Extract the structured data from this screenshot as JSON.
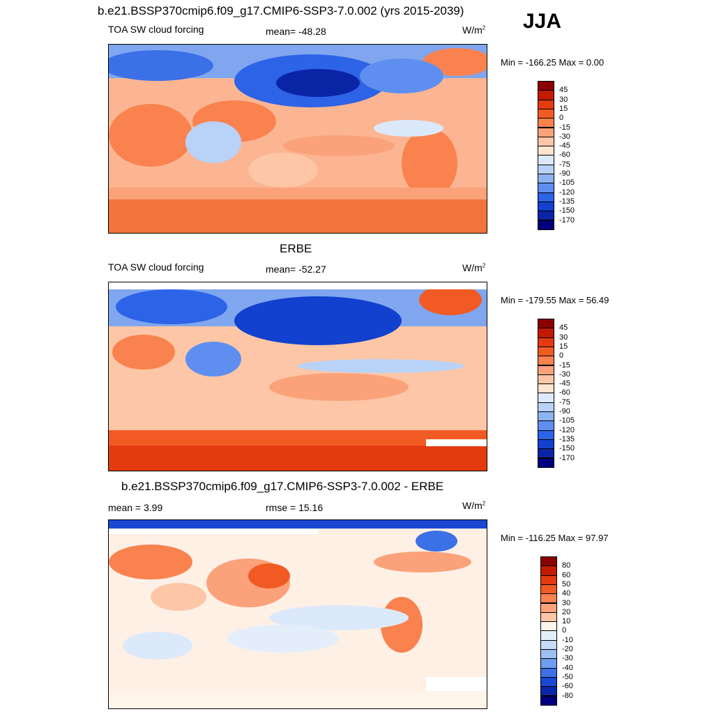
{
  "season": "JJA",
  "panels": [
    {
      "title": "b.e21.BSSP370cmip6.f09_g17.CMIP6-SSP3-7.0.002 (yrs 2015-2039)",
      "left_label": "TOA SW cloud forcing",
      "center_label": "mean= -48.28",
      "units": "W/m",
      "units_sup": "2",
      "minmax": "Min = -166.25 Max =   0.00",
      "colorbar_labels": [
        "45",
        "30",
        "15",
        "0",
        "-15",
        "-30",
        "-45",
        "-60",
        "-75",
        "-90",
        "-105",
        "-120",
        "-135",
        "-150",
        "-170"
      ],
      "colors": [
        "#8b0000",
        "#c31a00",
        "#e43a10",
        "#f25a24",
        "#f9824f",
        "#fba27a",
        "#fdc6a6",
        "#ffe4cf",
        "#dce9fa",
        "#b9d2f7",
        "#8db3f2",
        "#5e8ff0",
        "#2d63e6",
        "#1240cf",
        "#0a24a6",
        "#00007f"
      ]
    },
    {
      "title": "ERBE",
      "left_label": "TOA SW cloud forcing",
      "center_label": "mean= -52.27",
      "units": "W/m",
      "units_sup": "2",
      "minmax": "Min = -179.55 Max =  56.49",
      "colorbar_labels": [
        "45",
        "30",
        "15",
        "0",
        "-15",
        "-30",
        "-45",
        "-60",
        "-75",
        "-90",
        "-105",
        "-120",
        "-135",
        "-150",
        "-170"
      ],
      "colors": [
        "#8b0000",
        "#c31a00",
        "#e43a10",
        "#f25a24",
        "#f9824f",
        "#fba27a",
        "#fdc6a6",
        "#ffe4cf",
        "#dce9fa",
        "#b9d2f7",
        "#8db3f2",
        "#5e8ff0",
        "#2d63e6",
        "#1240cf",
        "#0a24a6",
        "#00007f"
      ]
    },
    {
      "title": "b.e21.BSSP370cmip6.f09_g17.CMIP6-SSP3-7.0.002 - ERBE",
      "left_label": "mean =   3.99",
      "center_label": "rmse =  15.16",
      "units": "W/m",
      "units_sup": "2",
      "minmax": "Min = -116.25 Max =  97.97",
      "colorbar_labels": [
        "80",
        "60",
        "50",
        "40",
        "30",
        "20",
        "10",
        "0",
        "-10",
        "-20",
        "-30",
        "-40",
        "-50",
        "-60",
        "-80"
      ],
      "colors": [
        "#8b0000",
        "#c31a00",
        "#e43a10",
        "#f25a24",
        "#f9824f",
        "#fba27a",
        "#fdc6a6",
        "#fff4ea",
        "#e4eefb",
        "#c5dbf8",
        "#9cc0f4",
        "#6d9cf0",
        "#3c70e6",
        "#1a48d3",
        "#0a26a8",
        "#00007f"
      ]
    }
  ]
}
